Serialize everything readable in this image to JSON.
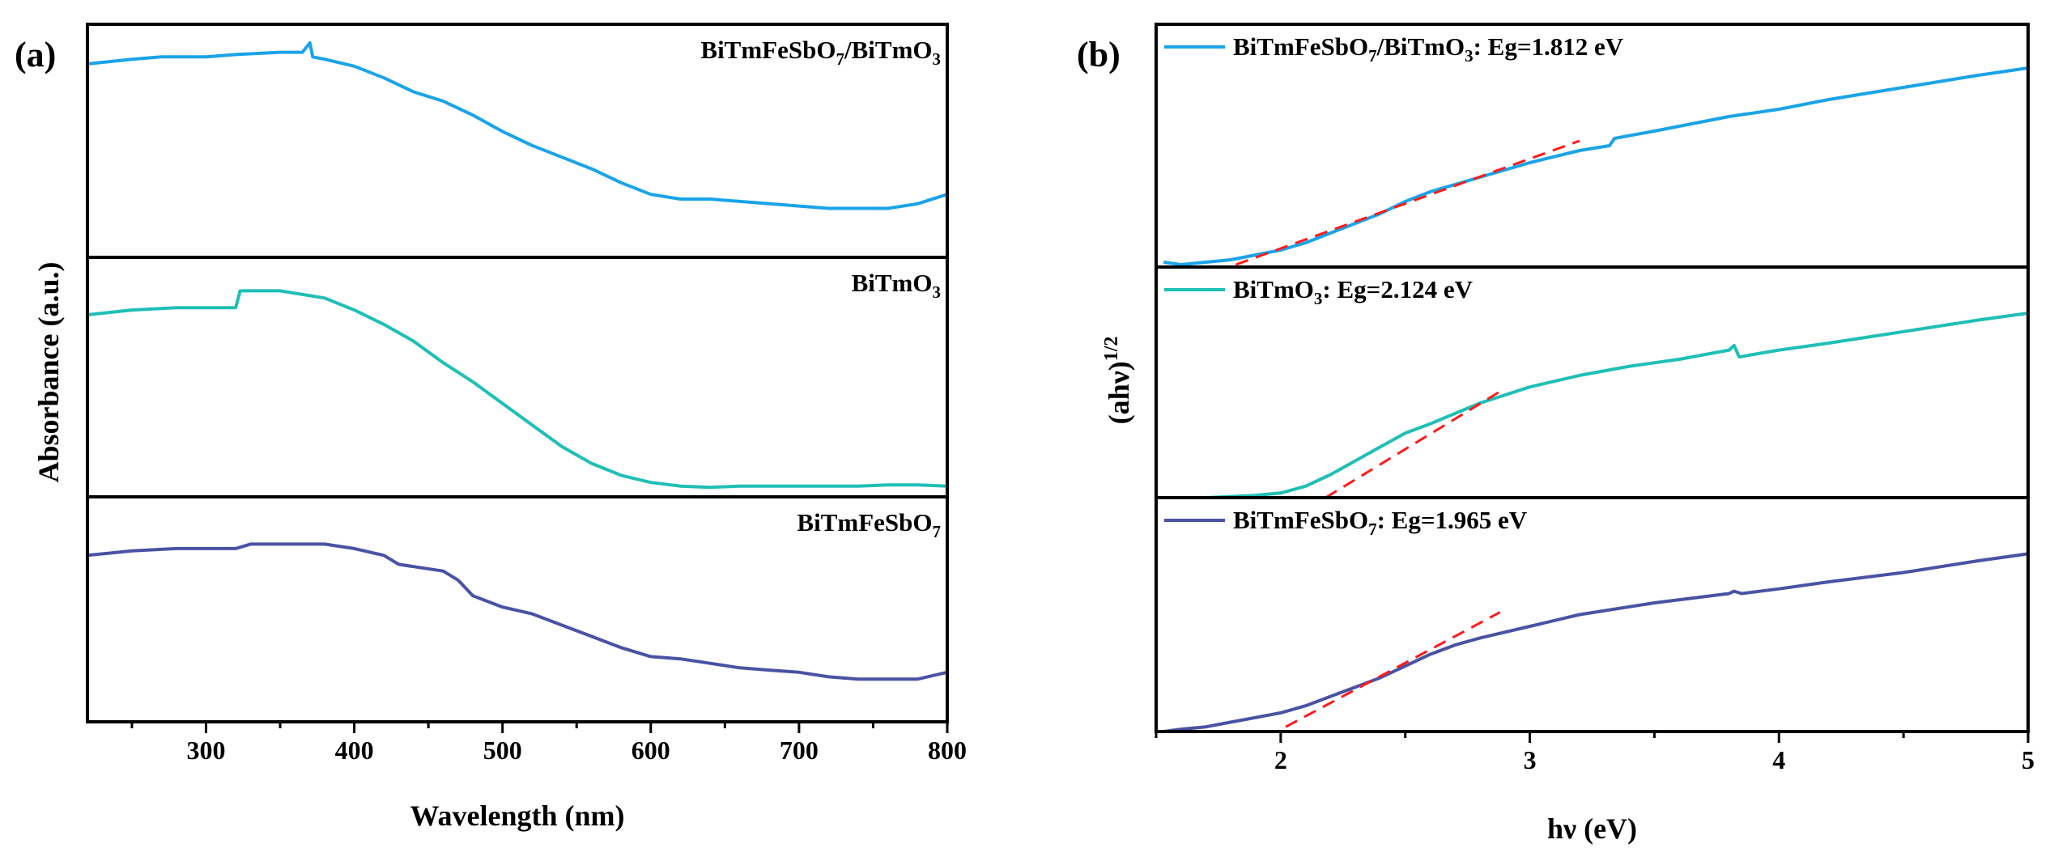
{
  "chart_data": [
    {
      "type": "line",
      "panel_label": "(a)",
      "xlabel": "Wavelength (nm)",
      "ylabel": "Absorbance (a.u.)",
      "xlim": [
        220,
        800
      ],
      "x_ticks": [
        300,
        400,
        500,
        600,
        700,
        800
      ],
      "x_minor_ticks": [
        250,
        350,
        450,
        550,
        650,
        750
      ],
      "stacked": true,
      "series": [
        {
          "name": "BiTmFeSbO7/BiTmO3",
          "label_parts": [
            [
              "BiTmFeSbO",
              false
            ],
            [
              "7",
              true
            ],
            [
              "/BiTmO",
              false
            ],
            [
              "3",
              true
            ]
          ],
          "color": "#1aa3e8",
          "ylim": [
            0,
            1
          ],
          "x": [
            220,
            250,
            270,
            300,
            320,
            350,
            365,
            370,
            372,
            380,
            400,
            420,
            440,
            460,
            480,
            500,
            520,
            540,
            560,
            580,
            600,
            620,
            640,
            660,
            680,
            700,
            720,
            740,
            760,
            780,
            800
          ],
          "y": [
            0.83,
            0.85,
            0.86,
            0.86,
            0.87,
            0.88,
            0.88,
            0.92,
            0.86,
            0.85,
            0.82,
            0.77,
            0.71,
            0.67,
            0.61,
            0.54,
            0.48,
            0.43,
            0.38,
            0.32,
            0.27,
            0.25,
            0.25,
            0.24,
            0.23,
            0.22,
            0.21,
            0.21,
            0.21,
            0.23,
            0.27
          ]
        },
        {
          "name": "BiTmO3",
          "label_parts": [
            [
              "BiTmO",
              false
            ],
            [
              "3",
              true
            ]
          ],
          "color": "#1fbfb5",
          "ylim": [
            0,
            1
          ],
          "x": [
            220,
            250,
            280,
            300,
            320,
            323,
            330,
            350,
            380,
            400,
            420,
            440,
            460,
            480,
            500,
            520,
            540,
            560,
            580,
            600,
            620,
            640,
            660,
            680,
            700,
            720,
            740,
            760,
            780,
            800
          ],
          "y": [
            0.76,
            0.78,
            0.79,
            0.79,
            0.79,
            0.86,
            0.86,
            0.86,
            0.83,
            0.78,
            0.72,
            0.65,
            0.56,
            0.48,
            0.39,
            0.3,
            0.21,
            0.14,
            0.09,
            0.06,
            0.045,
            0.04,
            0.045,
            0.045,
            0.045,
            0.045,
            0.045,
            0.05,
            0.05,
            0.045
          ]
        },
        {
          "name": "BiTmFeSbO7",
          "label_parts": [
            [
              "BiTmFeSbO",
              false
            ],
            [
              "7",
              true
            ]
          ],
          "color": "#4a52a3",
          "ylim": [
            0,
            1
          ],
          "x": [
            220,
            250,
            280,
            300,
            320,
            330,
            350,
            380,
            400,
            420,
            430,
            440,
            460,
            470,
            480,
            500,
            520,
            540,
            560,
            580,
            600,
            620,
            640,
            660,
            680,
            700,
            720,
            740,
            760,
            780,
            800
          ],
          "y": [
            0.74,
            0.76,
            0.77,
            0.77,
            0.77,
            0.79,
            0.79,
            0.79,
            0.77,
            0.74,
            0.7,
            0.69,
            0.67,
            0.63,
            0.56,
            0.51,
            0.48,
            0.43,
            0.38,
            0.33,
            0.29,
            0.28,
            0.26,
            0.24,
            0.23,
            0.22,
            0.2,
            0.19,
            0.19,
            0.19,
            0.22
          ]
        }
      ]
    },
    {
      "type": "line",
      "panel_label": "(b)",
      "xlabel": "hν (eV)",
      "ylabel_main": "(ahν)",
      "ylabel_sup": "1/2",
      "xlim": [
        1.5,
        5
      ],
      "x_ticks": [
        2,
        3,
        4,
        5
      ],
      "x_minor_ticks": [
        1.5,
        2.5,
        3.5,
        4.5
      ],
      "stacked": true,
      "series": [
        {
          "name": "BiTmFeSbO7/BiTmO3",
          "label_parts": [
            [
              "BiTmFeSbO",
              false
            ],
            [
              "7",
              true
            ],
            [
              "/BiTmO",
              false
            ],
            [
              "3",
              true
            ],
            [
              ": Eg=1.812 eV",
              false
            ]
          ],
          "eg": "1.812 eV",
          "color": "#1aa3e8",
          "ylim": [
            0,
            1
          ],
          "x": [
            1.53,
            1.6,
            1.7,
            1.8,
            1.9,
            2.0,
            2.1,
            2.2,
            2.3,
            2.4,
            2.5,
            2.6,
            2.8,
            3.0,
            3.2,
            3.32,
            3.34,
            3.5,
            3.8,
            4.0,
            4.2,
            4.5,
            4.8,
            5.0
          ],
          "y": [
            0.02,
            0.01,
            0.02,
            0.03,
            0.05,
            0.07,
            0.1,
            0.14,
            0.18,
            0.22,
            0.27,
            0.31,
            0.37,
            0.43,
            0.48,
            0.5,
            0.53,
            0.56,
            0.62,
            0.65,
            0.69,
            0.74,
            0.79,
            0.82
          ],
          "fit_x": [
            1.82,
            3.2
          ],
          "fit_y": [
            0.01,
            0.52
          ]
        },
        {
          "name": "BiTmO3",
          "label_parts": [
            [
              "BiTmO",
              false
            ],
            [
              "3",
              true
            ],
            [
              ": Eg=2.124 eV",
              false
            ]
          ],
          "eg": "2.124 eV",
          "color": "#1fbfb5",
          "ylim": [
            0,
            1
          ],
          "x": [
            1.53,
            1.7,
            1.9,
            2.0,
            2.1,
            2.2,
            2.3,
            2.4,
            2.5,
            2.6,
            2.8,
            3.0,
            3.2,
            3.4,
            3.6,
            3.8,
            3.82,
            3.84,
            4.0,
            4.2,
            4.5,
            4.8,
            5.0
          ],
          "y": [
            0.0,
            0.0,
            0.01,
            0.02,
            0.05,
            0.1,
            0.16,
            0.22,
            0.28,
            0.32,
            0.41,
            0.48,
            0.53,
            0.57,
            0.6,
            0.64,
            0.66,
            0.61,
            0.64,
            0.67,
            0.72,
            0.77,
            0.8
          ],
          "fit_x": [
            2.18,
            2.88
          ],
          "fit_y": [
            0.0,
            0.46
          ]
        },
        {
          "name": "BiTmFeSbO7",
          "label_parts": [
            [
              "BiTmFeSbO",
              false
            ],
            [
              "7",
              true
            ],
            [
              ": Eg=1.965 eV",
              false
            ]
          ],
          "eg": "1.965 eV",
          "color": "#4a52a3",
          "ylim": [
            0,
            1
          ],
          "x": [
            1.53,
            1.6,
            1.7,
            1.8,
            1.9,
            2.0,
            2.1,
            2.2,
            2.3,
            2.4,
            2.5,
            2.6,
            2.7,
            2.8,
            3.0,
            3.2,
            3.5,
            3.8,
            3.82,
            3.85,
            4.0,
            4.2,
            4.5,
            4.8,
            5.0
          ],
          "y": [
            0.0,
            0.01,
            0.02,
            0.04,
            0.06,
            0.08,
            0.11,
            0.15,
            0.19,
            0.23,
            0.28,
            0.33,
            0.37,
            0.4,
            0.45,
            0.5,
            0.55,
            0.59,
            0.6,
            0.59,
            0.61,
            0.64,
            0.68,
            0.73,
            0.76
          ],
          "fit_x": [
            2.02,
            2.88
          ],
          "fit_y": [
            0.02,
            0.51
          ]
        }
      ]
    }
  ]
}
